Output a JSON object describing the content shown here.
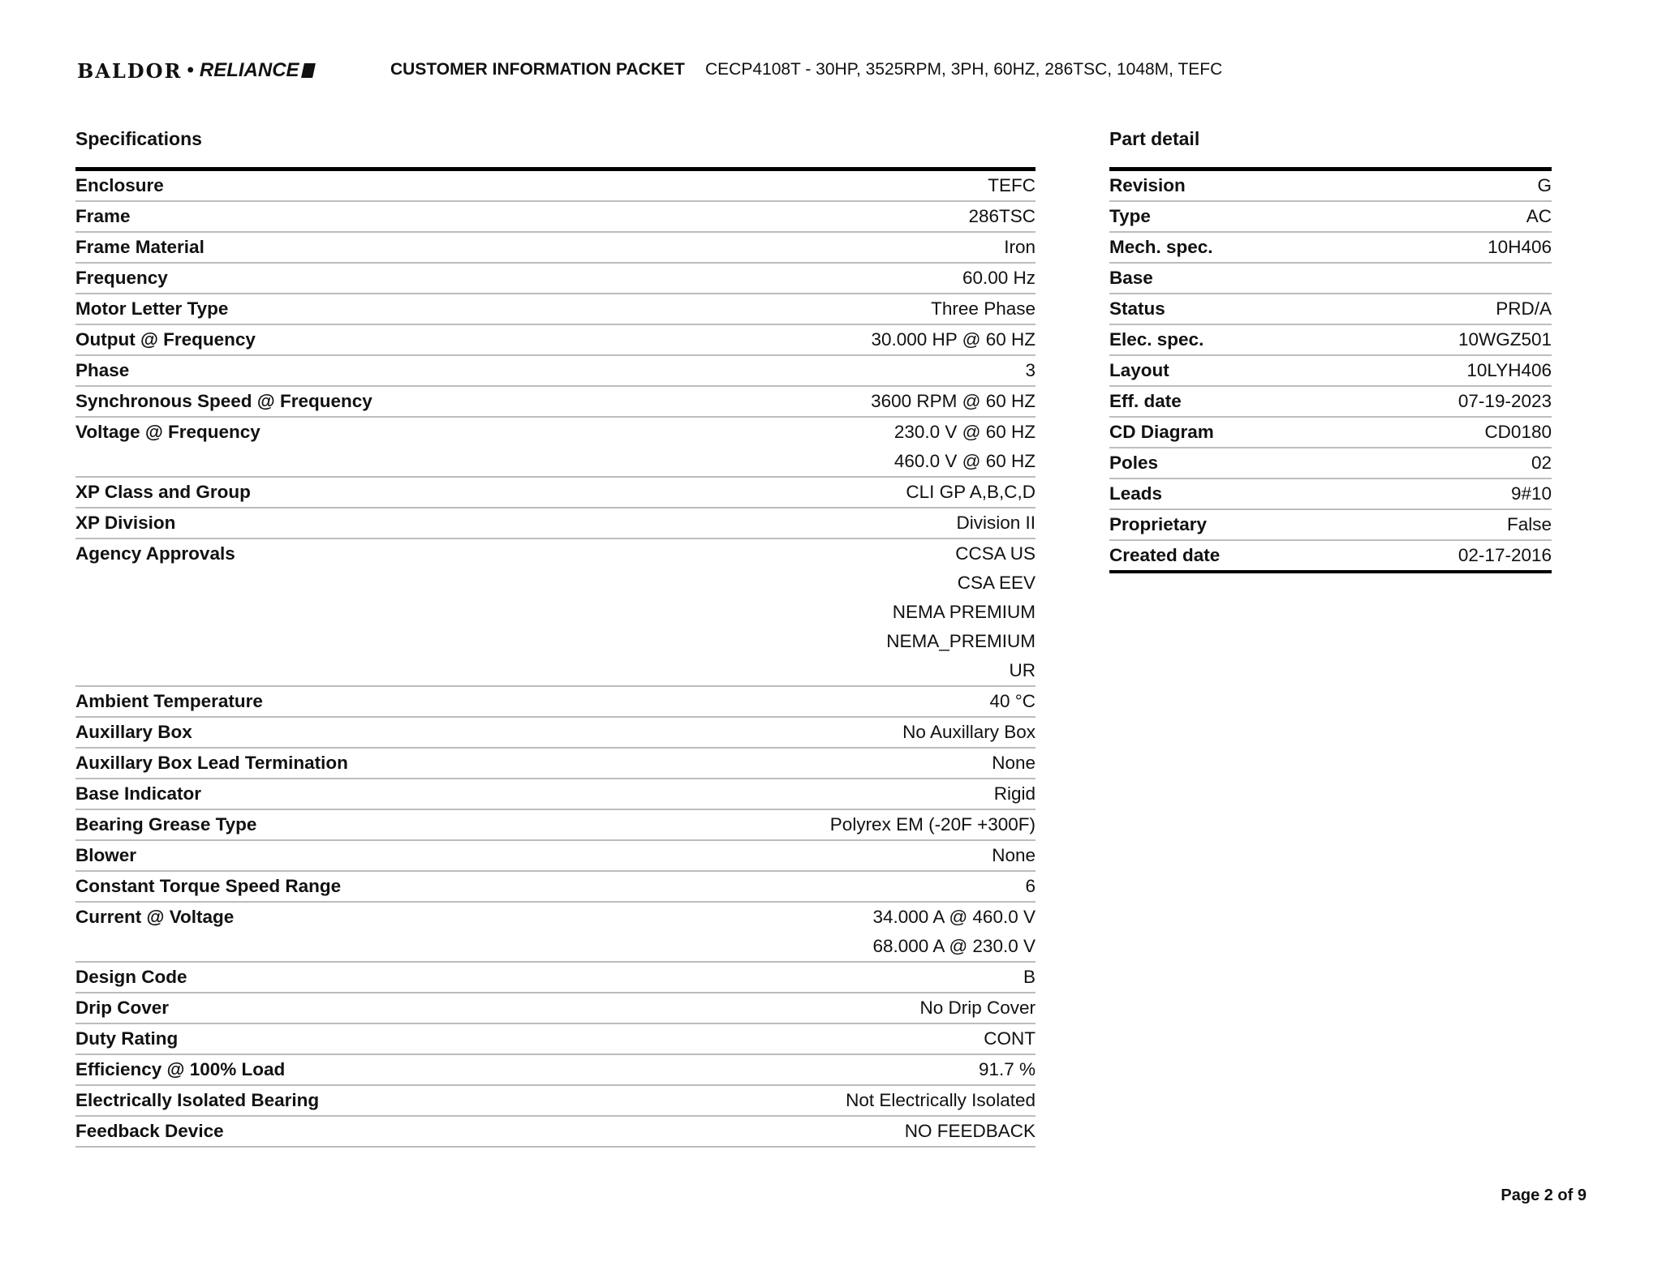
{
  "header": {
    "logo_text": "BALDOR • RELIANCE",
    "packet_title": "CUSTOMER INFORMATION PACKET",
    "product_description": "CECP4108T - 30HP, 3525RPM, 3PH, 60HZ, 286TSC, 1048M, TEFC"
  },
  "specifications": {
    "title": "Specifications",
    "rows": [
      {
        "label": "Enclosure",
        "values": [
          "TEFC"
        ]
      },
      {
        "label": "Frame",
        "values": [
          "286TSC"
        ]
      },
      {
        "label": "Frame Material",
        "values": [
          "Iron"
        ]
      },
      {
        "label": "Frequency",
        "values": [
          "60.00 Hz"
        ]
      },
      {
        "label": "Motor Letter Type",
        "values": [
          "Three Phase"
        ]
      },
      {
        "label": "Output @ Frequency",
        "values": [
          "30.000 HP @ 60 HZ"
        ]
      },
      {
        "label": "Phase",
        "values": [
          "3"
        ]
      },
      {
        "label": "Synchronous Speed @ Frequency",
        "values": [
          "3600 RPM @ 60 HZ"
        ]
      },
      {
        "label": "Voltage @ Frequency",
        "values": [
          "230.0 V @ 60 HZ",
          "460.0 V @ 60 HZ"
        ]
      },
      {
        "label": "XP Class and Group",
        "values": [
          "CLI GP A,B,C,D"
        ]
      },
      {
        "label": "XP Division",
        "values": [
          "Division II"
        ]
      },
      {
        "label": "Agency Approvals",
        "values": [
          "CCSA US",
          "CSA EEV",
          "NEMA PREMIUM",
          "NEMA_PREMIUM",
          "UR"
        ]
      },
      {
        "label": "Ambient Temperature",
        "values": [
          "40 °C"
        ]
      },
      {
        "label": "Auxillary Box",
        "values": [
          "No Auxillary Box"
        ]
      },
      {
        "label": "Auxillary Box Lead Termination",
        "values": [
          "None"
        ]
      },
      {
        "label": "Base Indicator",
        "values": [
          "Rigid"
        ]
      },
      {
        "label": "Bearing Grease Type",
        "values": [
          "Polyrex EM (-20F +300F)"
        ]
      },
      {
        "label": "Blower",
        "values": [
          "None"
        ]
      },
      {
        "label": "Constant Torque Speed Range",
        "values": [
          "6"
        ]
      },
      {
        "label": "Current @ Voltage",
        "values": [
          "34.000 A @ 460.0 V",
          "68.000 A @ 230.0 V"
        ]
      },
      {
        "label": "Design Code",
        "values": [
          "B"
        ]
      },
      {
        "label": "Drip Cover",
        "values": [
          "No Drip Cover"
        ]
      },
      {
        "label": "Duty Rating",
        "values": [
          "CONT"
        ]
      },
      {
        "label": "Efficiency @ 100% Load",
        "values": [
          "91.7 %"
        ]
      },
      {
        "label": "Electrically Isolated Bearing",
        "values": [
          "Not Electrically Isolated"
        ]
      },
      {
        "label": "Feedback Device",
        "values": [
          "NO FEEDBACK"
        ]
      }
    ]
  },
  "part_detail": {
    "title": "Part detail",
    "rows": [
      {
        "label": "Revision",
        "values": [
          "G"
        ]
      },
      {
        "label": "Type",
        "values": [
          "AC"
        ]
      },
      {
        "label": "Mech. spec.",
        "values": [
          "10H406"
        ]
      },
      {
        "label": "Base",
        "values": [
          ""
        ]
      },
      {
        "label": "Status",
        "values": [
          "PRD/A"
        ]
      },
      {
        "label": "Elec. spec.",
        "values": [
          "10WGZ501"
        ]
      },
      {
        "label": "Layout",
        "values": [
          "10LYH406"
        ]
      },
      {
        "label": "Eff. date",
        "values": [
          "07-19-2023"
        ]
      },
      {
        "label": "CD Diagram",
        "values": [
          "CD0180"
        ]
      },
      {
        "label": "Poles",
        "values": [
          "02"
        ]
      },
      {
        "label": "Leads",
        "values": [
          "9#10"
        ]
      },
      {
        "label": "Proprietary",
        "values": [
          "False"
        ]
      },
      {
        "label": "Created date",
        "values": [
          "02-17-2016"
        ]
      }
    ]
  },
  "footer": {
    "page_label": "Page 2 of 9"
  }
}
